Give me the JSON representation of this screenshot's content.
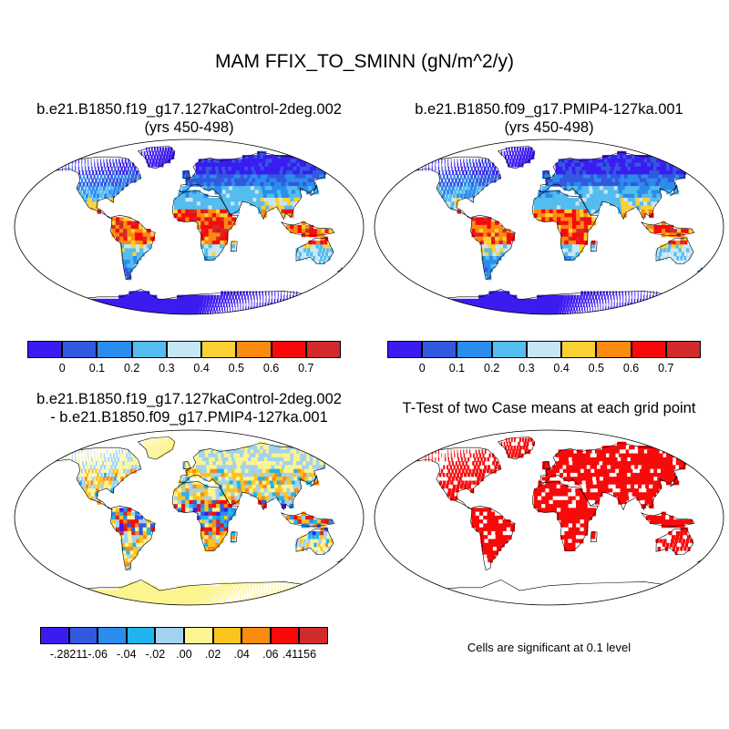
{
  "figure": {
    "title": "MAM FFIX_TO_SMINN (gN/m^2/y)"
  },
  "panels": [
    {
      "id": "control",
      "title_line1": "b.e21.B1850.f19_g17.127kaControl-2deg.002",
      "title_line2": "(yrs 450-498)"
    },
    {
      "id": "pmip4",
      "title_line1": "b.e21.B1850.f09_g17.PMIP4-127ka.001",
      "title_line2": "(yrs 450-498)"
    },
    {
      "id": "difference",
      "title_line1": "b.e21.B1850.f19_g17.127kaControl-2deg.002",
      "title_line2": "- b.e21.B1850.f09_g17.PMIP4-127ka.001"
    },
    {
      "id": "ttest",
      "title_line1": "T-Test of two Case means at each grid point",
      "note": "Cells are significant at 0.1 level"
    }
  ],
  "colorbars": {
    "main": {
      "colors": [
        "#3b1cf0",
        "#3358e0",
        "#2a8cec",
        "#55bcef",
        "#c5e6f4",
        "#fbd033",
        "#fb8a10",
        "#f80a0a",
        "#d02a2a"
      ],
      "labels": [
        "0",
        "0.1",
        "0.2",
        "0.3",
        "0.4",
        "0.5",
        "0.6",
        "0.7"
      ]
    },
    "diff": {
      "colors": [
        "#3b1cf0",
        "#3358e0",
        "#2a8cec",
        "#20b4ec",
        "#a2d2ee",
        "#fcf48f",
        "#fbc41e",
        "#fb8a10",
        "#f80a0a",
        "#d02a2a"
      ],
      "labels": [
        "-.28211",
        "-.06",
        "-.04",
        "-.02",
        ".00",
        ".02",
        ".04",
        ".06",
        ".41156"
      ]
    }
  },
  "map_colors": {
    "ocean": "#ffffff",
    "significant": "#f80a0a",
    "not_significant": "#ffffff",
    "coastline": "#000000"
  }
}
